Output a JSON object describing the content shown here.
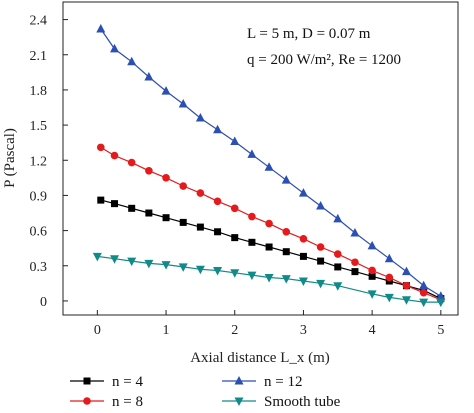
{
  "chart_data": {
    "type": "line",
    "xlabel": "Axial distance L_x (m)",
    "ylabel": "P (Pascal)",
    "xlim": [
      -0.5,
      5.25
    ],
    "ylim": [
      -0.12,
      2.55
    ],
    "x_ticks": [
      0,
      1,
      2,
      3,
      4,
      5
    ],
    "y_ticks": [
      0,
      0.3,
      0.6,
      0.9,
      1.2,
      1.5,
      1.8,
      2.1,
      2.4
    ],
    "grid": false,
    "legend_position": "bottom",
    "annotations": [
      "L = 5 m, D = 0.07 m",
      "q = 200 W/m², Re = 1200"
    ],
    "series": [
      {
        "name": "n = 4",
        "marker": "square",
        "color": "#000000",
        "x": [
          0.05,
          0.25,
          0.5,
          0.75,
          1.0,
          1.25,
          1.5,
          1.75,
          2.0,
          2.25,
          2.5,
          2.75,
          3.0,
          3.25,
          3.5,
          3.75,
          4.0,
          4.25,
          4.5,
          4.75,
          5.0
        ],
        "y": [
          0.86,
          0.83,
          0.79,
          0.75,
          0.71,
          0.67,
          0.63,
          0.59,
          0.54,
          0.5,
          0.46,
          0.42,
          0.38,
          0.34,
          0.29,
          0.25,
          0.21,
          0.17,
          0.13,
          0.09,
          0.02
        ]
      },
      {
        "name": "n = 8",
        "marker": "circle",
        "color": "#e41a1c",
        "x": [
          0.05,
          0.25,
          0.5,
          0.75,
          1.0,
          1.25,
          1.5,
          1.75,
          2.0,
          2.25,
          2.5,
          2.75,
          3.0,
          3.25,
          3.5,
          3.75,
          4.0,
          4.25,
          4.5,
          4.75,
          5.0
        ],
        "y": [
          1.31,
          1.24,
          1.18,
          1.11,
          1.05,
          0.98,
          0.92,
          0.85,
          0.79,
          0.72,
          0.66,
          0.59,
          0.53,
          0.46,
          0.4,
          0.33,
          0.26,
          0.2,
          0.13,
          0.07,
          0.01
        ]
      },
      {
        "name": "n = 12",
        "marker": "triangle-up",
        "color": "#2b4fb3",
        "x": [
          0.05,
          0.25,
          0.5,
          0.75,
          1.0,
          1.25,
          1.5,
          1.75,
          2.0,
          2.25,
          2.5,
          2.75,
          3.0,
          3.25,
          3.5,
          3.75,
          4.0,
          4.25,
          4.5,
          4.75,
          5.0
        ],
        "y": [
          2.32,
          2.15,
          2.04,
          1.91,
          1.79,
          1.68,
          1.56,
          1.46,
          1.36,
          1.25,
          1.14,
          1.03,
          0.92,
          0.81,
          0.7,
          0.58,
          0.47,
          0.36,
          0.25,
          0.13,
          0.04
        ]
      },
      {
        "name": "Smooth tube",
        "marker": "triangle-down",
        "color": "#138a8a",
        "x": [
          0.0,
          0.25,
          0.5,
          0.75,
          1.0,
          1.25,
          1.5,
          1.75,
          2.0,
          2.25,
          2.5,
          2.75,
          3.0,
          3.25,
          3.5,
          4.0,
          4.25,
          4.5,
          4.75,
          5.0
        ],
        "y": [
          0.38,
          0.36,
          0.34,
          0.32,
          0.31,
          0.29,
          0.27,
          0.26,
          0.24,
          0.22,
          0.2,
          0.19,
          0.17,
          0.15,
          0.13,
          0.06,
          0.03,
          0.01,
          -0.01,
          -0.01
        ]
      }
    ]
  }
}
